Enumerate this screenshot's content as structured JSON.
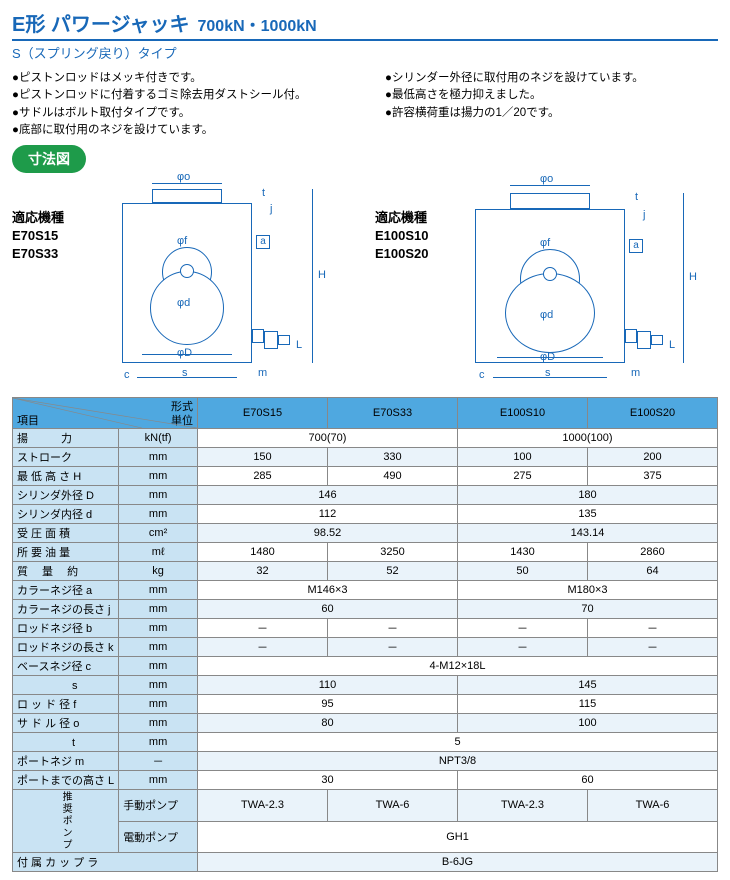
{
  "header": {
    "title_main": "E形 パワージャッキ",
    "title_sub": "700kN・1000kN",
    "subtitle": "S（スプリング戻り）タイプ"
  },
  "bullets": {
    "left": [
      "●ピストンロッドはメッキ付きです。",
      "●ピストンロッドに付着するゴミ除去用ダストシール付。",
      "●サドルはボルト取付タイプです。",
      "●底部に取付用のネジを設けています。"
    ],
    "right": [
      "●シリンダー外径に取付用のネジを設けています。",
      "●最低高さを極力抑えました。",
      "●許容横荷重は揚力の1／20です。"
    ]
  },
  "dimbtn": "寸法図",
  "diagrams": {
    "left": {
      "header": "適応機種",
      "models": [
        "E70S15",
        "E70S33"
      ],
      "dims": {
        "phio": "φo",
        "phif": "φf",
        "phid": "φd",
        "phiD": "φD",
        "H": "H",
        "a": "a",
        "c": "c",
        "s": "s",
        "m": "m",
        "L": "L",
        "t": "t",
        "j": "j"
      }
    },
    "right": {
      "header": "適応機種",
      "models": [
        "E100S10",
        "E100S20"
      ],
      "dims": {
        "phio": "φo",
        "phif": "φf",
        "phid": "φd",
        "phiD": "φD",
        "H": "H",
        "a": "a",
        "c": "c",
        "s": "s",
        "m": "m",
        "L": "L",
        "t": "t",
        "j": "j"
      }
    }
  },
  "table": {
    "header": {
      "item": "項目",
      "form": "形式",
      "unit": "単位",
      "cols": [
        "E70S15",
        "E70S33",
        "E100S10",
        "E100S20"
      ]
    },
    "rows": [
      {
        "label": "揚　　　力",
        "unit": "kN(tf)",
        "cells": [
          {
            "span": 2,
            "v": "700(70)"
          },
          {
            "span": 2,
            "v": "1000(100)"
          }
        ]
      },
      {
        "label": "ストローク",
        "unit": "mm",
        "cells": [
          {
            "v": "150"
          },
          {
            "v": "330"
          },
          {
            "v": "100"
          },
          {
            "v": "200"
          }
        ]
      },
      {
        "label": "最 低 高 さ H",
        "unit": "mm",
        "cells": [
          {
            "v": "285"
          },
          {
            "v": "490"
          },
          {
            "v": "275"
          },
          {
            "v": "375"
          }
        ]
      },
      {
        "label": "シリンダ外径 D",
        "unit": "mm",
        "cells": [
          {
            "span": 2,
            "v": "146"
          },
          {
            "span": 2,
            "v": "180"
          }
        ]
      },
      {
        "label": "シリンダ内径 d",
        "unit": "mm",
        "cells": [
          {
            "span": 2,
            "v": "112"
          },
          {
            "span": 2,
            "v": "135"
          }
        ]
      },
      {
        "label": "受 圧 面 積",
        "unit": "cm²",
        "cells": [
          {
            "span": 2,
            "v": "98.52"
          },
          {
            "span": 2,
            "v": "143.14"
          }
        ]
      },
      {
        "label": "所 要 油 量",
        "unit": "mℓ",
        "cells": [
          {
            "v": "1480"
          },
          {
            "v": "3250"
          },
          {
            "v": "1430"
          },
          {
            "v": "2860"
          }
        ]
      },
      {
        "label": "質　 量　 約",
        "unit": "kg",
        "cells": [
          {
            "v": "32"
          },
          {
            "v": "52"
          },
          {
            "v": "50"
          },
          {
            "v": "64"
          }
        ]
      },
      {
        "label": "カラーネジ径 a",
        "unit": "mm",
        "cells": [
          {
            "span": 2,
            "v": "M146×3"
          },
          {
            "span": 2,
            "v": "M180×3"
          }
        ]
      },
      {
        "label": "カラーネジの長さ j",
        "unit": "mm",
        "cells": [
          {
            "span": 2,
            "v": "60"
          },
          {
            "span": 2,
            "v": "70"
          }
        ]
      },
      {
        "label": "ロッドネジ径 b",
        "unit": "mm",
        "cells": [
          {
            "v": "－"
          },
          {
            "v": "－"
          },
          {
            "v": "－"
          },
          {
            "v": "－"
          }
        ]
      },
      {
        "label": "ロッドネジの長さ k",
        "unit": "mm",
        "cells": [
          {
            "v": "－"
          },
          {
            "v": "－"
          },
          {
            "v": "－"
          },
          {
            "v": "－"
          }
        ]
      },
      {
        "label": "ベースネジ径 c",
        "unit": "mm",
        "cells": [
          {
            "span": 4,
            "v": "4-M12×18L"
          }
        ]
      },
      {
        "label": "　　　　　s",
        "unit": "mm",
        "cells": [
          {
            "span": 2,
            "v": "110"
          },
          {
            "span": 2,
            "v": "145"
          }
        ]
      },
      {
        "label": "ロ ッ ド 径 f",
        "unit": "mm",
        "cells": [
          {
            "span": 2,
            "v": "95"
          },
          {
            "span": 2,
            "v": "115"
          }
        ]
      },
      {
        "label": "サ ド ル 径 o",
        "unit": "mm",
        "cells": [
          {
            "span": 2,
            "v": "80"
          },
          {
            "span": 2,
            "v": "100"
          }
        ]
      },
      {
        "label": "　　　　　t",
        "unit": "mm",
        "cells": [
          {
            "span": 4,
            "v": "5"
          }
        ]
      },
      {
        "label": "ポートネジ m",
        "unit": "－",
        "cells": [
          {
            "span": 4,
            "v": "NPT3/8"
          }
        ]
      },
      {
        "label": "ポートまでの高さ L",
        "unit": "mm",
        "cells": [
          {
            "span": 2,
            "v": "30"
          },
          {
            "span": 2,
            "v": "60"
          }
        ]
      }
    ],
    "pump_side": "推奨ポンプ",
    "pump_rows": [
      {
        "label": "手動ポンプ",
        "cells": [
          {
            "v": "TWA-2.3"
          },
          {
            "v": "TWA-6"
          },
          {
            "v": "TWA-2.3"
          },
          {
            "v": "TWA-6"
          }
        ]
      },
      {
        "label": "電動ポンプ",
        "cells": [
          {
            "span": 4,
            "v": "GH1"
          }
        ]
      }
    ],
    "coupler": {
      "label": "付 属 カ ッ プ ラ",
      "cells": [
        {
          "span": 4,
          "v": "B-6JG"
        }
      ]
    }
  }
}
